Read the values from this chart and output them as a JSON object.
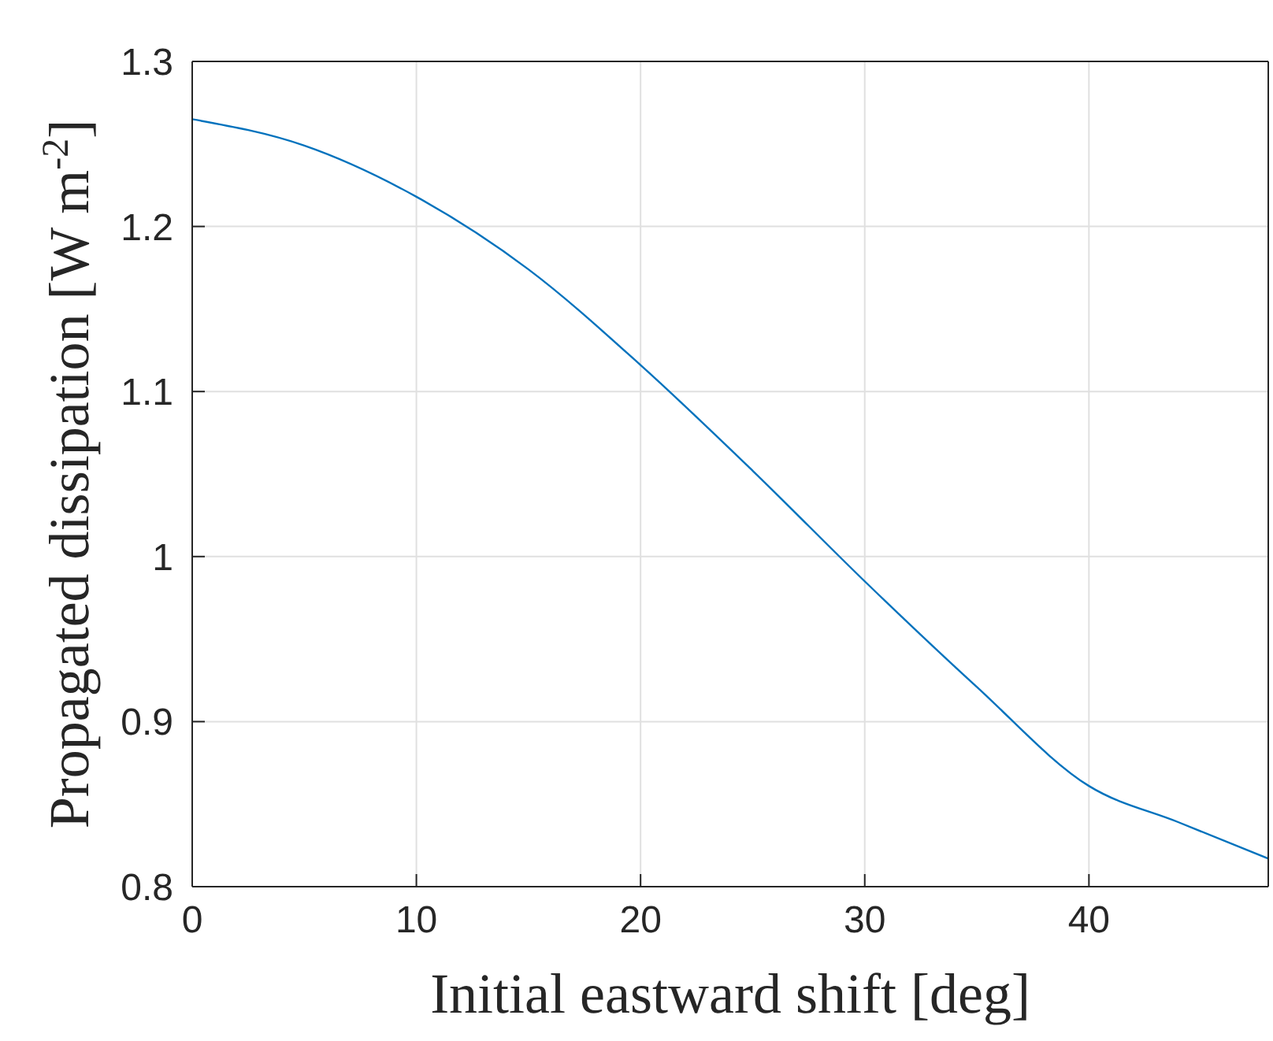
{
  "chart_data": {
    "type": "line",
    "xlabel": "Initial eastward shift [deg]",
    "ylabel": "Propagated dissipation [W m$^{-2}$]",
    "x": [
      0,
      5,
      10,
      15,
      20,
      25,
      30,
      35,
      40,
      44,
      48
    ],
    "series": [
      {
        "color": "#0072bd",
        "values": [
          1.265,
          1.249,
          1.218,
          1.174,
          1.116,
          1.052,
          0.985,
          0.921,
          0.861,
          0.839,
          0.817
        ]
      }
    ],
    "xlim": [
      0,
      48
    ],
    "xticks": [
      0,
      10,
      20,
      30,
      40
    ],
    "ylim": [
      0.8,
      1.3
    ],
    "yticks": [
      0.8,
      0.9,
      1,
      1.1,
      1.2,
      1.3
    ],
    "grid": true,
    "marker": "none",
    "line_style": "solid"
  }
}
